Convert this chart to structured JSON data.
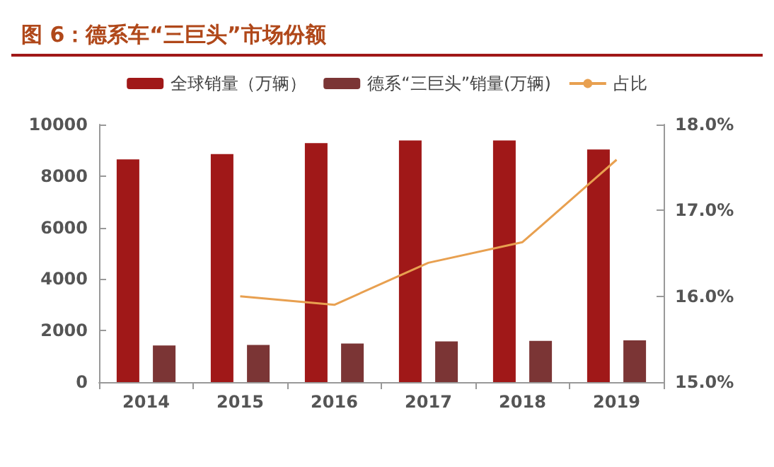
{
  "chart_data": {
    "type": "bar",
    "title": "图 6：德系车“三巨头”市场份额",
    "categories": [
      "2014",
      "2015",
      "2016",
      "2017",
      "2018",
      "2019"
    ],
    "series": [
      {
        "name": "全球销量（万辆）",
        "color": "#a01818",
        "values": [
          8650,
          8850,
          9280,
          9380,
          9380,
          9030
        ]
      },
      {
        "name": "德系“三巨头”销量(万辆)",
        "color": "#7b3535",
        "values": [
          1420,
          1440,
          1500,
          1580,
          1600,
          1620
        ]
      },
      {
        "name": "占比",
        "type": "line",
        "axis": "y2",
        "color": "#e8a050",
        "values": [
          null,
          16.0,
          15.9,
          16.39,
          16.63,
          17.59
        ]
      }
    ],
    "ylim": [
      0,
      10000
    ],
    "yticks": [
      0,
      2000,
      4000,
      6000,
      8000,
      10000
    ],
    "y2lim": [
      15,
      18
    ],
    "y2ticks": [
      {
        "value": 15,
        "label": "15.0%"
      },
      {
        "value": 16,
        "label": "16.0%"
      },
      {
        "value": 17,
        "label": "17.0%"
      },
      {
        "value": 18,
        "label": "18.0%"
      }
    ],
    "grid": false,
    "legend": "top",
    "marker": "none",
    "line_style": "solid"
  }
}
